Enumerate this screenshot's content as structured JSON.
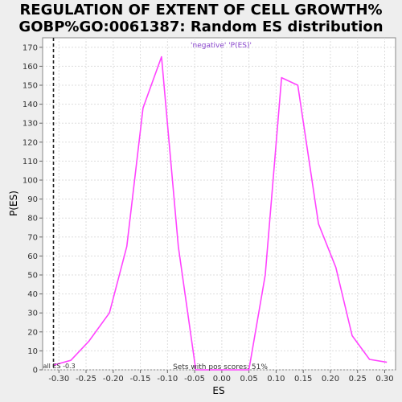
{
  "chart_data": {
    "type": "line",
    "title_lines": [
      "REGULATION OF EXTENT OF CELL GROWTH%",
      "GOBP%GO:0061387: Random ES distribution"
    ],
    "xlabel": "ES",
    "ylabel": "P(ES)",
    "xlim": [
      -0.33,
      0.32
    ],
    "ylim": [
      0,
      175
    ],
    "xticks": [
      -0.3,
      -0.25,
      -0.2,
      -0.15,
      -0.1,
      -0.05,
      0.0,
      0.05,
      0.1,
      0.15,
      0.2,
      0.25,
      0.3
    ],
    "xtick_labels": [
      "-0.30",
      "-0.25",
      "-0.20",
      "-0.15",
      "-0.10",
      "-0.05",
      "0.00",
      "0.05",
      "0.10",
      "0.15",
      "0.20",
      "0.25",
      "0.30"
    ],
    "yticks": [
      0,
      10,
      20,
      30,
      40,
      50,
      60,
      70,
      80,
      90,
      100,
      110,
      120,
      130,
      140,
      150,
      160,
      170
    ],
    "grid": true,
    "legend_placement": "top-center",
    "legend_text": "'negative' 'P(ES)'",
    "series": [
      {
        "name": "negative",
        "color": "#ff44ff",
        "x": [
          -0.31,
          -0.278,
          -0.245,
          -0.207,
          -0.175,
          -0.145,
          -0.111,
          -0.08,
          -0.048,
          -0.015,
          0.015,
          0.05,
          0.08,
          0.11,
          0.14,
          0.178,
          0.21,
          0.24,
          0.272,
          0.304
        ],
        "y": [
          2.5,
          5,
          15,
          30,
          65,
          138,
          165,
          65,
          0,
          0,
          0,
          0,
          50,
          154,
          150,
          77,
          54,
          18,
          5.5,
          4
        ]
      }
    ],
    "marker_line": {
      "x": -0.31,
      "label": "all ES -0.3"
    },
    "annotation": "Sets with pos scores: 51%"
  }
}
